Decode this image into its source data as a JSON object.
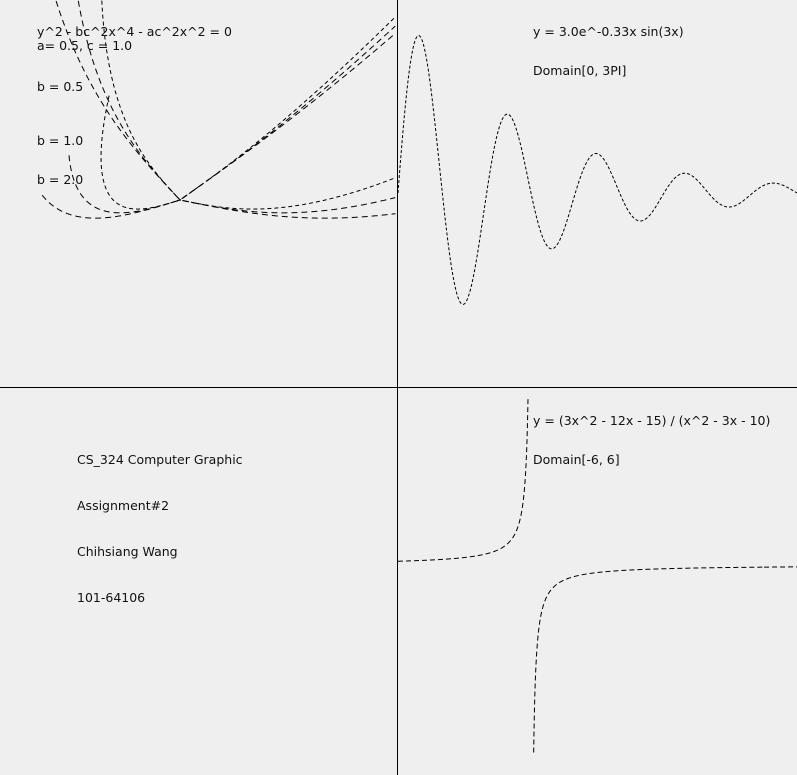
{
  "chart_data": [
    {
      "type": "line",
      "title": "y^2 - bc^2x^4 - ac^2x^2 = 0",
      "params_label": "a= 0.5, c = 1.0",
      "series": [
        {
          "name": "b = 0.5",
          "b": 0.5
        },
        {
          "name": "b = 1.0",
          "b": 1.0
        },
        {
          "name": "b = 2.0",
          "b": 2.0
        }
      ]
    },
    {
      "type": "line",
      "title": "y = 3.0e^-0.33x sin(3x)",
      "domain_label": "Domain[0, 3PI]"
    },
    {
      "type": "line",
      "title": "y = (3x^2 - 12x - 15) / (x^2 - 3x - 10)",
      "domain_label": "Domain[-6, 6]"
    }
  ],
  "info": {
    "course": "CS_324 Computer Graphic",
    "assignment": "Assignment#2",
    "author": "Chihsiang Wang",
    "student_id": "101-64106"
  }
}
